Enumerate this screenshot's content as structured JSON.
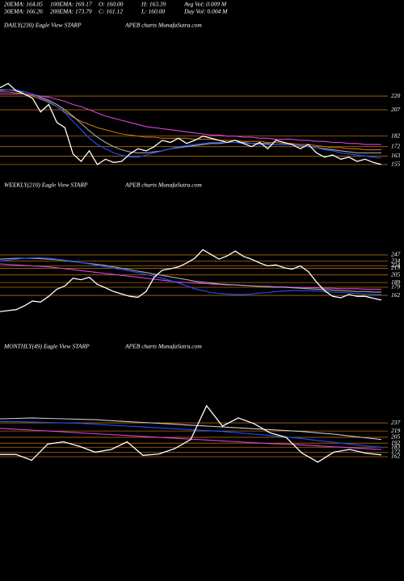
{
  "header": {
    "lines": [
      [
        "20EMA: 164.05",
        "100EMA: 169.17",
        "O: 160.00",
        "H: 163.39",
        "Avg Vol: 0.009 M"
      ],
      [
        "30EMA: 166.26",
        "200EMA: 173.79",
        "C: 161.12",
        "L: 160.00",
        "Day Vol: 0.004 M"
      ]
    ]
  },
  "chart_data": [
    {
      "type": "line",
      "title": "DAILY(230) Eagle  View  STARP",
      "subtitle": "APEB charts MunafaSutra.com",
      "ylim": [
        148,
        240
      ],
      "yticks": [
        220,
        207,
        182,
        172,
        163,
        155
      ],
      "grid": true,
      "grid_color": "#b06a10",
      "series": [
        {
          "name": "Price",
          "color": "#ffffff",
          "values": [
            228,
            232,
            225,
            222,
            218,
            205,
            212,
            195,
            190,
            165,
            158,
            168,
            155,
            160,
            157,
            158,
            165,
            170,
            168,
            172,
            178,
            176,
            180,
            175,
            178,
            182,
            180,
            178,
            176,
            178,
            175,
            172,
            176,
            170,
            178,
            176,
            174,
            170,
            174,
            166,
            162,
            164,
            160,
            162,
            158,
            160,
            157,
            155
          ]
        },
        {
          "name": "20EMA",
          "color": "#2050ff",
          "values": [
            225,
            226,
            226,
            224,
            222,
            218,
            215,
            210,
            204,
            196,
            188,
            180,
            174,
            170,
            166,
            164,
            162,
            162,
            164,
            166,
            168,
            170,
            172,
            173,
            174,
            175,
            176,
            176,
            176,
            176,
            175,
            175,
            174,
            174,
            174,
            174,
            174,
            173,
            172,
            171,
            169,
            168,
            166,
            165,
            164,
            163,
            162,
            161
          ]
        },
        {
          "name": "30EMA",
          "color": "#aaaaaa",
          "values": [
            226,
            226,
            225,
            224,
            222,
            219,
            216,
            212,
            207,
            201,
            194,
            187,
            181,
            176,
            172,
            169,
            167,
            166,
            166,
            167,
            168,
            170,
            171,
            172,
            173,
            174,
            175,
            175,
            176,
            176,
            176,
            175,
            175,
            175,
            174,
            174,
            174,
            173,
            172,
            171,
            170,
            169,
            168,
            167,
            166,
            166,
            166,
            166
          ]
        },
        {
          "name": "100EMA",
          "color": "#c87000",
          "values": [
            224,
            224,
            223,
            222,
            220,
            217,
            214,
            210,
            205,
            200,
            196,
            193,
            190,
            188,
            186,
            184,
            183,
            182,
            181,
            181,
            180,
            180,
            180,
            180,
            179,
            179,
            179,
            178,
            178,
            178,
            177,
            177,
            177,
            176,
            176,
            175,
            175,
            174,
            174,
            173,
            172,
            171,
            171,
            170,
            170,
            169,
            169,
            169
          ]
        },
        {
          "name": "200EMA",
          "color": "#e040e0",
          "values": [
            222,
            222,
            222,
            222,
            221,
            220,
            219,
            217,
            215,
            212,
            210,
            207,
            204,
            201,
            199,
            197,
            195,
            193,
            191,
            190,
            189,
            188,
            187,
            186,
            185,
            184,
            183,
            183,
            182,
            182,
            181,
            181,
            180,
            180,
            179,
            179,
            179,
            178,
            178,
            177,
            177,
            176,
            176,
            175,
            175,
            174,
            174,
            174
          ]
        }
      ]
    },
    {
      "type": "line",
      "title": "WEEKLY(210) Eagle  View  STARP",
      "subtitle": "APEB charts MunafaSutra.com",
      "ylim": [
        118,
        274
      ],
      "yticks": [
        247,
        234,
        224,
        219,
        205,
        189,
        179,
        162
      ],
      "grid": true,
      "grid_color": "#b06a10",
      "series": [
        {
          "name": "Price",
          "color": "#ffffff",
          "values": [
            128,
            130,
            132,
            140,
            150,
            148,
            160,
            175,
            182,
            198,
            195,
            200,
            185,
            178,
            170,
            165,
            160,
            158,
            170,
            200,
            215,
            218,
            222,
            230,
            240,
            258,
            248,
            238,
            245,
            255,
            244,
            238,
            230,
            224,
            226,
            220,
            217,
            224,
            212,
            190,
            172,
            160,
            157,
            164,
            160,
            160,
            156,
            152
          ]
        },
        {
          "name": "20EMA",
          "color": "#2050ff",
          "values": [
            234,
            236,
            238,
            240,
            241,
            241,
            240,
            238,
            236,
            234,
            231,
            228,
            225,
            222,
            219,
            216,
            213,
            210,
            206,
            202,
            198,
            193,
            188,
            182,
            176,
            172,
            168,
            166,
            165,
            164,
            164,
            165,
            167,
            168,
            170,
            171,
            172,
            172,
            172,
            171,
            170,
            169,
            168,
            167,
            166,
            165,
            164,
            164
          ]
        },
        {
          "name": "100EMA",
          "color": "#aaaaaa",
          "values": [
            238,
            239,
            240,
            240,
            240,
            239,
            238,
            237,
            235,
            233,
            231,
            229,
            227,
            225,
            222,
            219,
            216,
            213,
            210,
            207,
            204,
            201,
            198,
            195,
            192,
            190,
            188,
            186,
            185,
            184,
            183,
            182,
            181,
            180,
            179,
            179,
            178,
            177,
            176,
            175,
            174,
            173,
            172,
            171,
            170,
            170,
            169,
            169
          ]
        },
        {
          "name": "200EMA",
          "color": "#e040e0",
          "values": [
            228,
            227,
            226,
            225,
            224,
            223,
            222,
            220,
            218,
            216,
            214,
            212,
            210,
            208,
            206,
            204,
            202,
            200,
            198,
            196,
            194,
            192,
            190,
            189,
            188,
            187,
            186,
            185,
            184,
            184,
            183,
            182,
            181,
            181,
            180,
            180,
            179,
            179,
            178,
            178,
            177,
            177,
            176,
            176,
            176,
            175,
            175,
            175
          ]
        }
      ]
    },
    {
      "type": "line",
      "title": "MONTHLY(49) Eagle  View  STARP",
      "subtitle": "APEB charts MunafaSutra.com",
      "ylim": [
        119,
        289
      ],
      "yticks": [
        237,
        219,
        205,
        192,
        183,
        172,
        162
      ],
      "grid": true,
      "grid_color": "#b06a10",
      "series": [
        {
          "name": "Price",
          "color": "#ffffff",
          "values": [
            167,
            167,
            154,
            190,
            195,
            185,
            172,
            178,
            195,
            165,
            168,
            180,
            200,
            275,
            230,
            248,
            235,
            215,
            205,
            170,
            150,
            172,
            178,
            170,
            166
          ]
        },
        {
          "name": "20EMA",
          "color": "#2050ff",
          "values": [
            240,
            240,
            239,
            238,
            237,
            236,
            234,
            232,
            230,
            228,
            226,
            224,
            222,
            220,
            218,
            215,
            212,
            209,
            206,
            202,
            198,
            194,
            190,
            186,
            183
          ]
        },
        {
          "name": "30EMA",
          "color": "#cccccc",
          "values": [
            246,
            247,
            248,
            247,
            246,
            245,
            244,
            242,
            240,
            238,
            236,
            234,
            232,
            230,
            228,
            226,
            224,
            222,
            220,
            218,
            215,
            212,
            208,
            204,
            200
          ]
        },
        {
          "name": "200EMA",
          "color": "#e040e0",
          "values": [
            225,
            223,
            221,
            219,
            217,
            215,
            213,
            211,
            209,
            207,
            205,
            203,
            201,
            199,
            197,
            195,
            193,
            191,
            190,
            188,
            186,
            184,
            182,
            180,
            178
          ]
        }
      ]
    }
  ]
}
